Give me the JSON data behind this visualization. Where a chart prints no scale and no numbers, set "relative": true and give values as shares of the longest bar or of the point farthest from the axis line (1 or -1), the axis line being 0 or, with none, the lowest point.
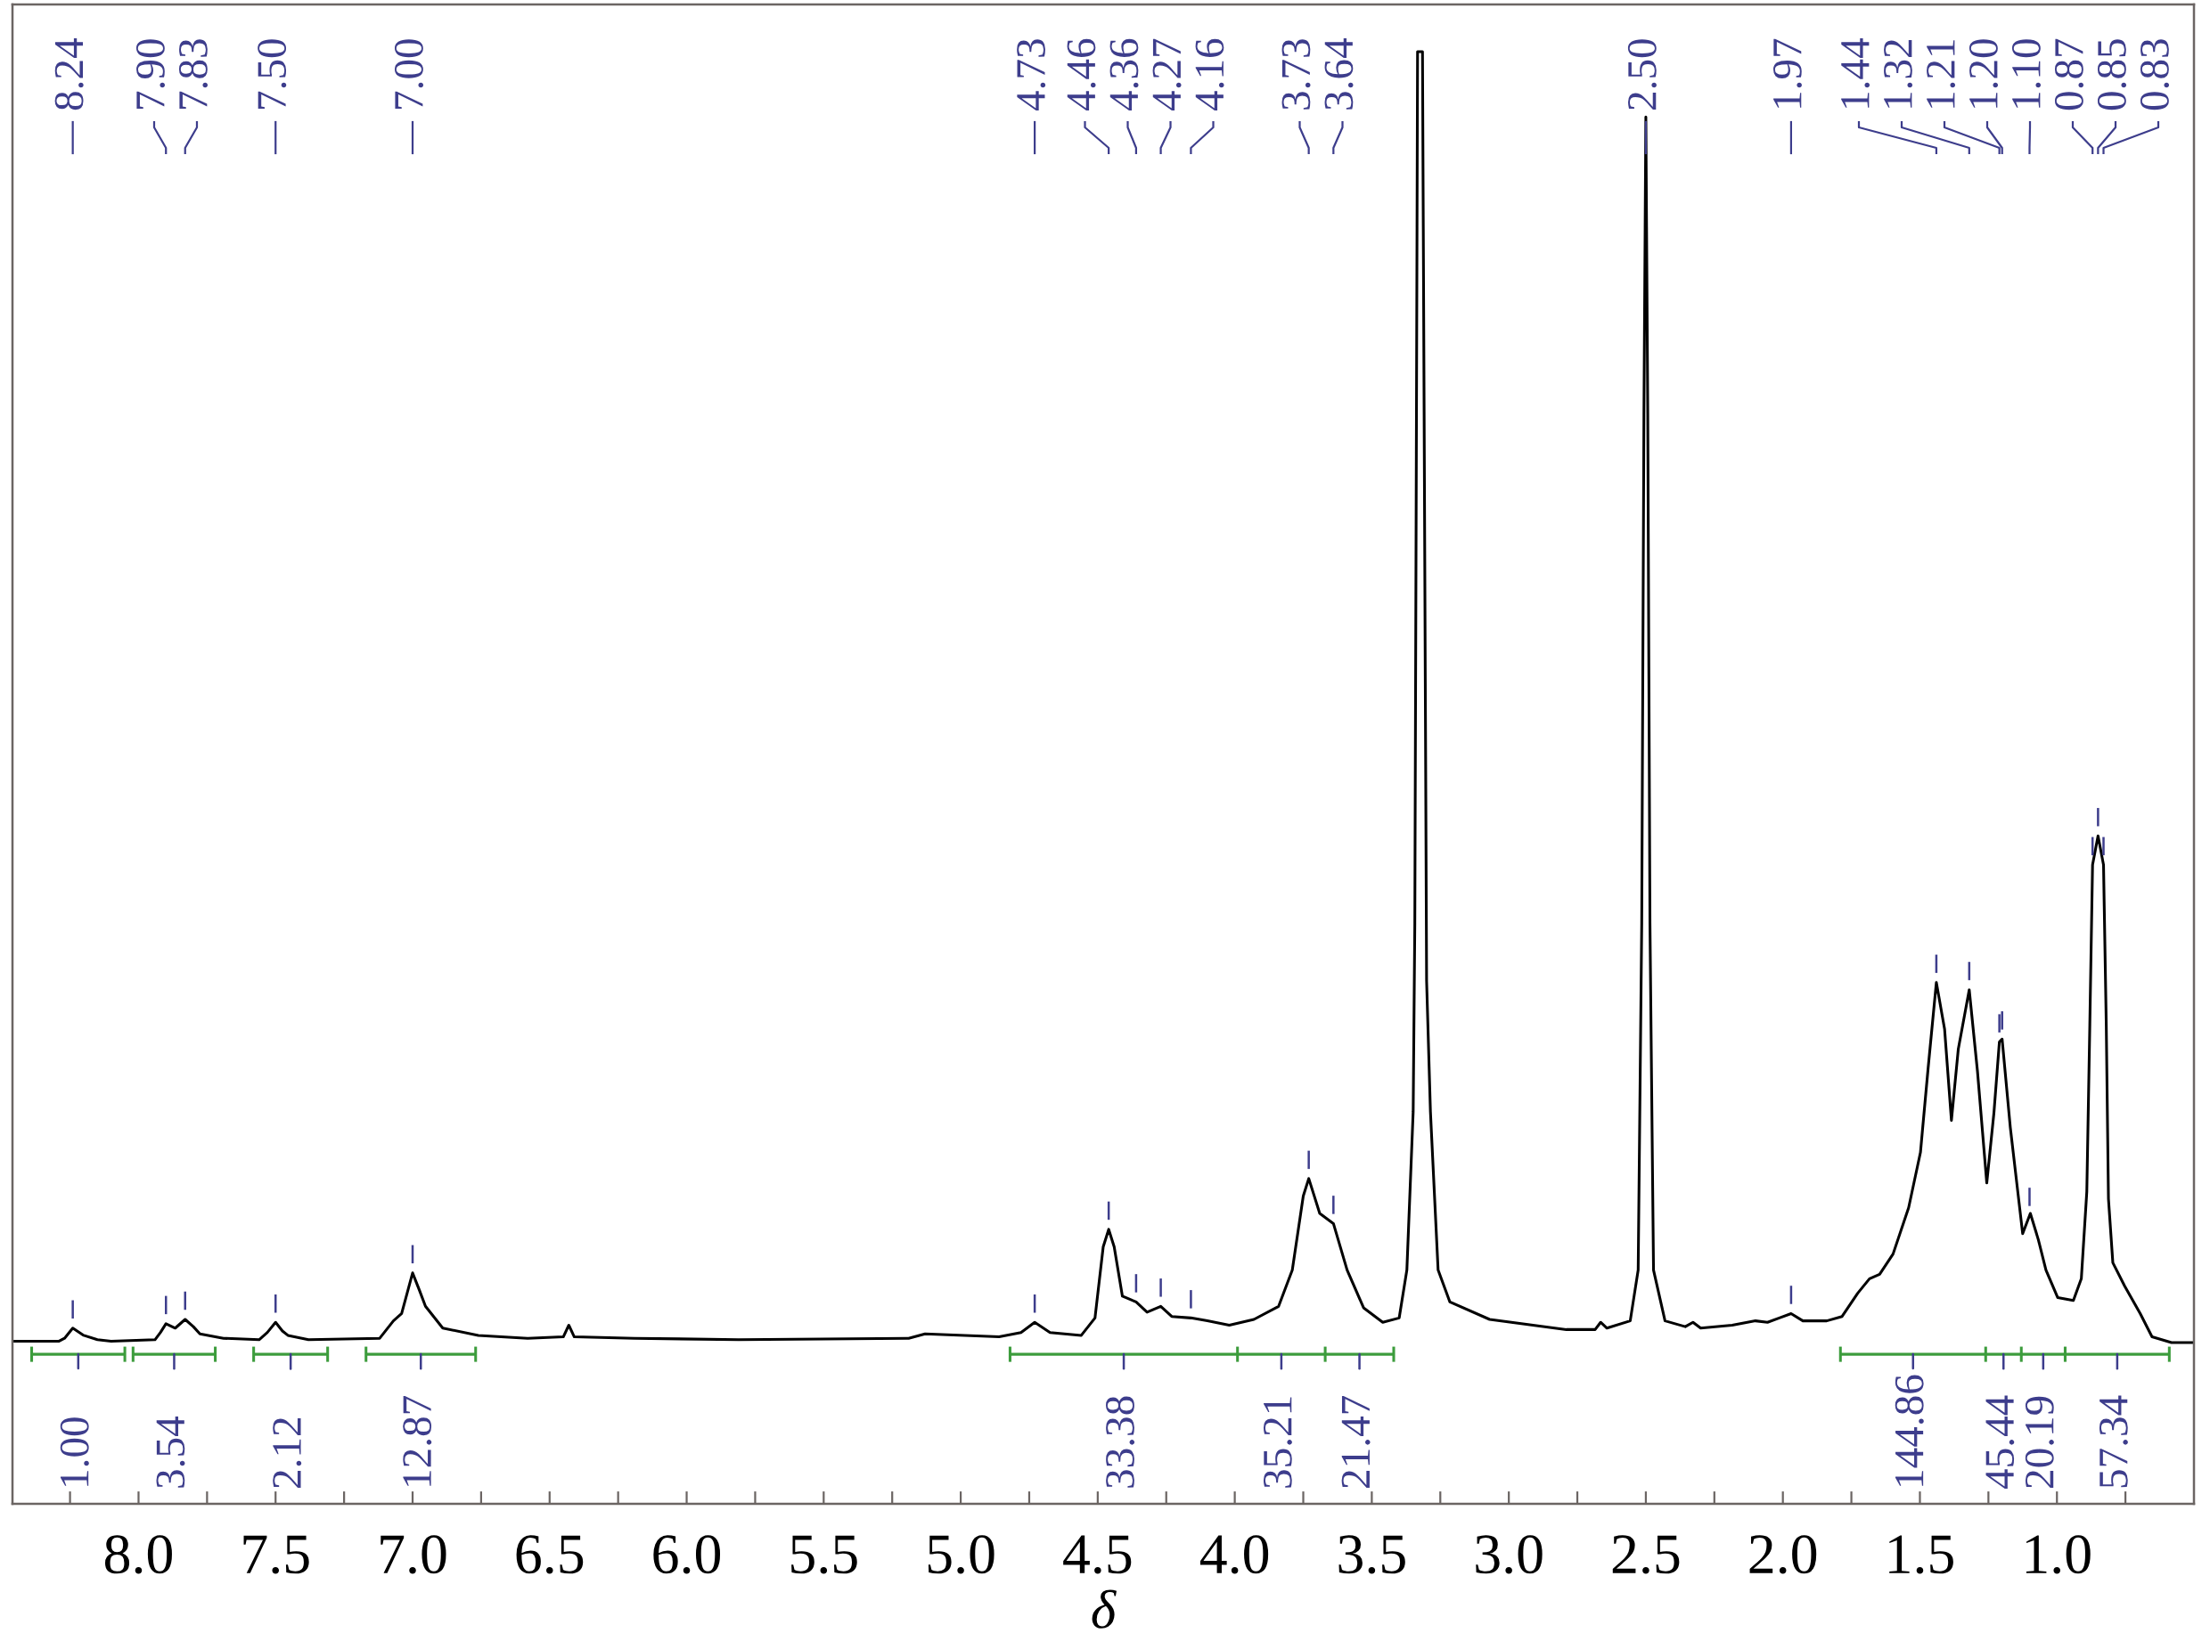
{
  "chart_data": {
    "type": "line",
    "relative": true,
    "xlabel": "δ",
    "tick_labels": "x",
    "xlim": [
      8.46,
      0.5
    ],
    "xticks": [
      {
        "value": 8.25,
        "label": null
      },
      {
        "value": 8,
        "label": "8.0"
      },
      {
        "value": 7.75,
        "label": null
      },
      {
        "value": 7.5,
        "label": "7.5"
      },
      {
        "value": 7.25,
        "label": null
      },
      {
        "value": 7,
        "label": "7.0"
      },
      {
        "value": 6.75,
        "label": null
      },
      {
        "value": 6.5,
        "label": "6.5"
      },
      {
        "value": 6.25,
        "label": null
      },
      {
        "value": 6,
        "label": "6.0"
      },
      {
        "value": 5.75,
        "label": null
      },
      {
        "value": 5.5,
        "label": "5.5"
      },
      {
        "value": 5.25,
        "label": null
      },
      {
        "value": 5,
        "label": "5.0"
      },
      {
        "value": 4.75,
        "label": null
      },
      {
        "value": 4.5,
        "label": "4.5"
      },
      {
        "value": 4.25,
        "label": null
      },
      {
        "value": 4,
        "label": "4.0"
      },
      {
        "value": 3.75,
        "label": null
      },
      {
        "value": 3.5,
        "label": "3.5"
      },
      {
        "value": 3.25,
        "label": null
      },
      {
        "value": 3,
        "label": "3.0"
      },
      {
        "value": 2.75,
        "label": null
      },
      {
        "value": 2.5,
        "label": "2.5"
      },
      {
        "value": 2.25,
        "label": null
      },
      {
        "value": 2,
        "label": "2.0"
      },
      {
        "value": 1.75,
        "label": null
      },
      {
        "value": 1.5,
        "label": "1.5"
      },
      {
        "value": 1.25,
        "label": null
      },
      {
        "value": 1,
        "label": "1.0"
      },
      {
        "value": 0.75,
        "label": null
      }
    ],
    "x": [
      8.46,
      8.29,
      8.27,
      8.24,
      8.2,
      8.15,
      8.1,
      7.94,
      7.92,
      7.9,
      7.866,
      7.83,
      7.8,
      7.776,
      7.69,
      7.56,
      7.53,
      7.5,
      7.475,
      7.455,
      7.38,
      7.12,
      7.07,
      7.04,
      7.02,
      7.0,
      6.975,
      6.953,
      6.89,
      6.76,
      6.58,
      6.45,
      6.43,
      6.41,
      6.19,
      5.81,
      5.19,
      5.13,
      4.86,
      4.78,
      4.73,
      4.674,
      4.56,
      4.51,
      4.48,
      4.46,
      4.44,
      4.41,
      4.36,
      4.32,
      4.27,
      4.23,
      4.16,
      4.1,
      4.02,
      3.93,
      3.84,
      3.79,
      3.75,
      3.73,
      3.69,
      3.64,
      3.59,
      3.53,
      3.46,
      3.4,
      3.372,
      3.349,
      3.343,
      3.337,
      3.333,
      3.315,
      3.309,
      3.3,
      3.286,
      3.258,
      3.215,
      3.07,
      2.79,
      2.685,
      2.665,
      2.642,
      2.557,
      2.528,
      2.515,
      2.507,
      2.5,
      2.493,
      2.485,
      2.472,
      2.43,
      2.356,
      2.328,
      2.3,
      2.185,
      2.1,
      2.056,
      2.013,
      1.97,
      1.927,
      1.84,
      1.784,
      1.727,
      1.684,
      1.647,
      1.598,
      1.541,
      1.498,
      1.47,
      1.44,
      1.41,
      1.385,
      1.36,
      1.32,
      1.29,
      1.256,
      1.23,
      1.21,
      1.2,
      1.17,
      1.125,
      1.097,
      1.068,
      1.04,
      0.997,
      0.94,
      0.911,
      0.891,
      0.88,
      0.87,
      0.85,
      0.83,
      0.82,
      0.812,
      0.796,
      0.753,
      0.696,
      0.653,
      0.582,
      0.5
    ],
    "series": [
      {
        "color": "#000000",
        "values": [
          0.112,
          0.112,
          0.114,
          0.121,
          0.116,
          0.113,
          0.112,
          0.113,
          0.118,
          0.124,
          0.121,
          0.127,
          0.122,
          0.117,
          0.114,
          0.113,
          0.118,
          0.125,
          0.119,
          0.116,
          0.113,
          0.114,
          0.126,
          0.131,
          0.145,
          0.159,
          0.147,
          0.136,
          0.121,
          0.116,
          0.114,
          0.115,
          0.123,
          0.115,
          0.114,
          0.113,
          0.114,
          0.117,
          0.115,
          0.118,
          0.125,
          0.118,
          0.116,
          0.128,
          0.177,
          0.189,
          0.177,
          0.143,
          0.139,
          0.132,
          0.136,
          0.129,
          0.128,
          0.126,
          0.123,
          0.127,
          0.136,
          0.161,
          0.212,
          0.224,
          0.2,
          0.193,
          0.161,
          0.135,
          0.125,
          0.128,
          0.161,
          0.27,
          0.4,
          0.75,
          1,
          1,
          0.75,
          0.36,
          0.27,
          0.161,
          0.139,
          0.127,
          0.12,
          0.12,
          0.125,
          0.121,
          0.126,
          0.161,
          0.4,
          0.75,
          0.955,
          0.75,
          0.4,
          0.161,
          0.126,
          0.122,
          0.125,
          0.121,
          0.123,
          0.126,
          0.125,
          0.128,
          0.131,
          0.126,
          0.126,
          0.129,
          0.145,
          0.155,
          0.158,
          0.172,
          0.204,
          0.242,
          0.3,
          0.359,
          0.327,
          0.264,
          0.313,
          0.354,
          0.298,
          0.221,
          0.269,
          0.318,
          0.32,
          0.259,
          0.186,
          0.2,
          0.182,
          0.161,
          0.142,
          0.14,
          0.155,
          0.215,
          0.33,
          0.44,
          0.46,
          0.44,
          0.33,
          0.21,
          0.166,
          0.15,
          0.131,
          0.115,
          0.111,
          0.111
        ]
      },
      {
        "color": "#3c9c3c",
        "x": [
          8.39,
          8.05
        ],
        "values": [
          0.103,
          0.103
        ]
      },
      {
        "color": "#3c9c3c",
        "x": [
          8.02,
          7.72
        ],
        "values": [
          0.103,
          0.103
        ]
      },
      {
        "color": "#3c9c3c",
        "x": [
          7.58,
          7.31
        ],
        "values": [
          0.103,
          0.103
        ]
      },
      {
        "color": "#3c9c3c",
        "x": [
          7.17,
          6.77
        ],
        "values": [
          0.103,
          0.103
        ]
      },
      {
        "color": "#3c9c3c",
        "x": [
          4.82,
          3.99,
          3.67,
          3.42
        ],
        "values": [
          0.103,
          0.103,
          0.103,
          0.103
        ]
      },
      {
        "color": "#3c9c3c",
        "x": [
          1.79,
          1.26,
          1.13,
          0.97,
          0.59
        ],
        "values": [
          0.103,
          0.103,
          0.103,
          0.103,
          0.103
        ]
      }
    ],
    "annotations": [
      {
        "text": "8.24",
        "x": 8.24
      },
      {
        "text": "7.90",
        "x": 7.9
      },
      {
        "text": "7.83",
        "x": 7.83
      },
      {
        "text": "7.50",
        "x": 7.5
      },
      {
        "text": "7.00",
        "x": 7.0
      },
      {
        "text": "4.73",
        "x": 4.73
      },
      {
        "text": "4.46",
        "x": 4.46
      },
      {
        "text": "4.36",
        "x": 4.36
      },
      {
        "text": "4.27",
        "x": 4.27
      },
      {
        "text": "4.16",
        "x": 4.16
      },
      {
        "text": "3.73",
        "x": 3.73
      },
      {
        "text": "3.64",
        "x": 3.64
      },
      {
        "text": "2.50",
        "x": 2.5
      },
      {
        "text": "1.97",
        "x": 1.97
      },
      {
        "text": "1.44",
        "x": 1.44
      },
      {
        "text": "1.32",
        "x": 1.32
      },
      {
        "text": "1.21",
        "x": 1.21
      },
      {
        "text": "1.20",
        "x": 1.2
      },
      {
        "text": "1.10",
        "x": 1.1
      },
      {
        "text": "0.87",
        "x": 0.87
      },
      {
        "text": "0.85",
        "x": 0.85
      },
      {
        "text": "0.83",
        "x": 0.83
      },
      {
        "text": "1.00",
        "x": 8.22,
        "y": 0.103
      },
      {
        "text": "3.54",
        "x": 7.87,
        "y": 0.103
      },
      {
        "text": "2.12",
        "x": 7.445,
        "y": 0.103
      },
      {
        "text": "12.87",
        "x": 6.97,
        "y": 0.103
      },
      {
        "text": "33.38",
        "x": 4.405,
        "y": 0.103
      },
      {
        "text": "35.21",
        "x": 3.83,
        "y": 0.103
      },
      {
        "text": "21.47",
        "x": 3.545,
        "y": 0.103
      },
      {
        "text": "144.86",
        "x": 1.525,
        "y": 0.103
      },
      {
        "text": "45.44",
        "x": 1.195,
        "y": 0.103
      },
      {
        "text": "20.19",
        "x": 1.05,
        "y": 0.103
      },
      {
        "text": "57.34",
        "x": 0.78,
        "y": 0.103
      }
    ]
  }
}
